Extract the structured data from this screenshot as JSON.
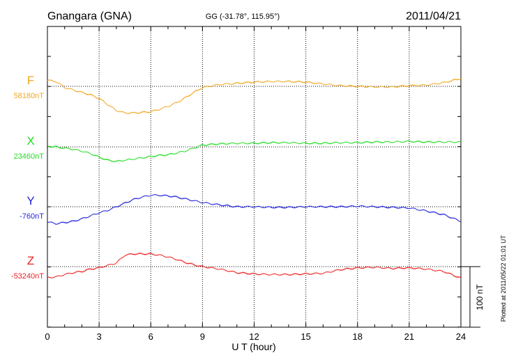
{
  "header": {
    "station": "Gnangara (GNA)",
    "coords": "GG (-31.78°, 115.95°)",
    "date": "2011/04/21"
  },
  "side_note": "Plotted at 2011/05/22 01:01  UT",
  "chart_data": {
    "type": "line",
    "xlabel": "U T (hour)",
    "xlim": [
      0,
      24
    ],
    "x_ticks": [
      0,
      3,
      6,
      9,
      12,
      15,
      18,
      21,
      24
    ],
    "scale_bar": {
      "label": "100 nT",
      "value_nT": 100
    },
    "grid": "dotted",
    "series": [
      {
        "name": "F",
        "baseline_label": "58180nT",
        "baseline_nT": 58180,
        "color": "#f0a820",
        "x": [
          0,
          0.5,
          1,
          1.5,
          2,
          2.5,
          3,
          3.5,
          4,
          4.5,
          5,
          5.5,
          6,
          6.5,
          7,
          7.5,
          8,
          8.5,
          9,
          10,
          11,
          12,
          13,
          14,
          15,
          16,
          17,
          18,
          19,
          20,
          21,
          22,
          23,
          24
        ],
        "y": [
          10,
          8,
          -2,
          -6,
          -10,
          -14,
          -20,
          -30,
          -40,
          -44,
          -44,
          -43,
          -42,
          -38,
          -33,
          -27,
          -19,
          -10,
          -2,
          3,
          5,
          7,
          8,
          8,
          7,
          4,
          1,
          0,
          -1,
          -1,
          1,
          2,
          6,
          13
        ]
      },
      {
        "name": "X",
        "baseline_label": "23460nT",
        "baseline_nT": 23460,
        "color": "#22dd22",
        "x": [
          0,
          0.5,
          1,
          1.5,
          2,
          2.5,
          3,
          3.5,
          4,
          4.5,
          5,
          5.5,
          6,
          6.5,
          7,
          7.5,
          8,
          8.5,
          9,
          10,
          11,
          12,
          13,
          14,
          15,
          16,
          17,
          18,
          19,
          20,
          21,
          22,
          23,
          24
        ],
        "y": [
          1,
          0,
          -2,
          -4,
          -7,
          -11,
          -17,
          -22,
          -24,
          -22,
          -20,
          -18,
          -16,
          -14,
          -13,
          -10,
          -7,
          -2,
          3,
          5,
          6,
          6,
          7,
          7,
          6,
          6,
          7,
          7,
          8,
          8,
          9,
          8,
          8,
          8
        ]
      },
      {
        "name": "Y",
        "baseline_label": "-760nT",
        "baseline_nT": -760,
        "color": "#2222dd",
        "x": [
          0,
          0.5,
          1,
          1.5,
          2,
          2.5,
          3,
          3.5,
          4,
          4.5,
          5,
          5.5,
          6,
          6.5,
          7,
          7.5,
          8,
          8.5,
          9,
          10,
          11,
          12,
          13,
          14,
          15,
          16,
          17,
          18,
          19,
          20,
          21,
          22,
          23,
          24
        ],
        "y": [
          -25,
          -28,
          -26,
          -24,
          -20,
          -15,
          -10,
          -6,
          0,
          6,
          12,
          16,
          19,
          19,
          18,
          16,
          13,
          10,
          7,
          3,
          0,
          0,
          -1,
          -1,
          0,
          0,
          0,
          1,
          0,
          -1,
          -2,
          -7,
          -13,
          -24
        ]
      },
      {
        "name": "Z",
        "baseline_label": "-53240nT",
        "baseline_nT": -53240,
        "color": "#ee2222",
        "x": [
          0,
          0.5,
          1,
          1.5,
          2,
          2.5,
          3,
          3.5,
          4,
          4.5,
          5,
          5.5,
          6,
          6.5,
          7,
          7.5,
          8,
          8.5,
          9,
          10,
          11,
          12,
          13,
          14,
          15,
          16,
          17,
          18,
          19,
          20,
          21,
          22,
          23,
          24
        ],
        "y": [
          -18,
          -17,
          -13,
          -10,
          -8,
          -4,
          -2,
          2,
          6,
          19,
          21,
          21,
          21,
          19,
          16,
          12,
          7,
          3,
          0,
          -4,
          -10,
          -12,
          -13,
          -13,
          -12,
          -11,
          -5,
          -2,
          -1,
          -3,
          -2,
          -4,
          -8,
          -19
        ]
      }
    ]
  }
}
